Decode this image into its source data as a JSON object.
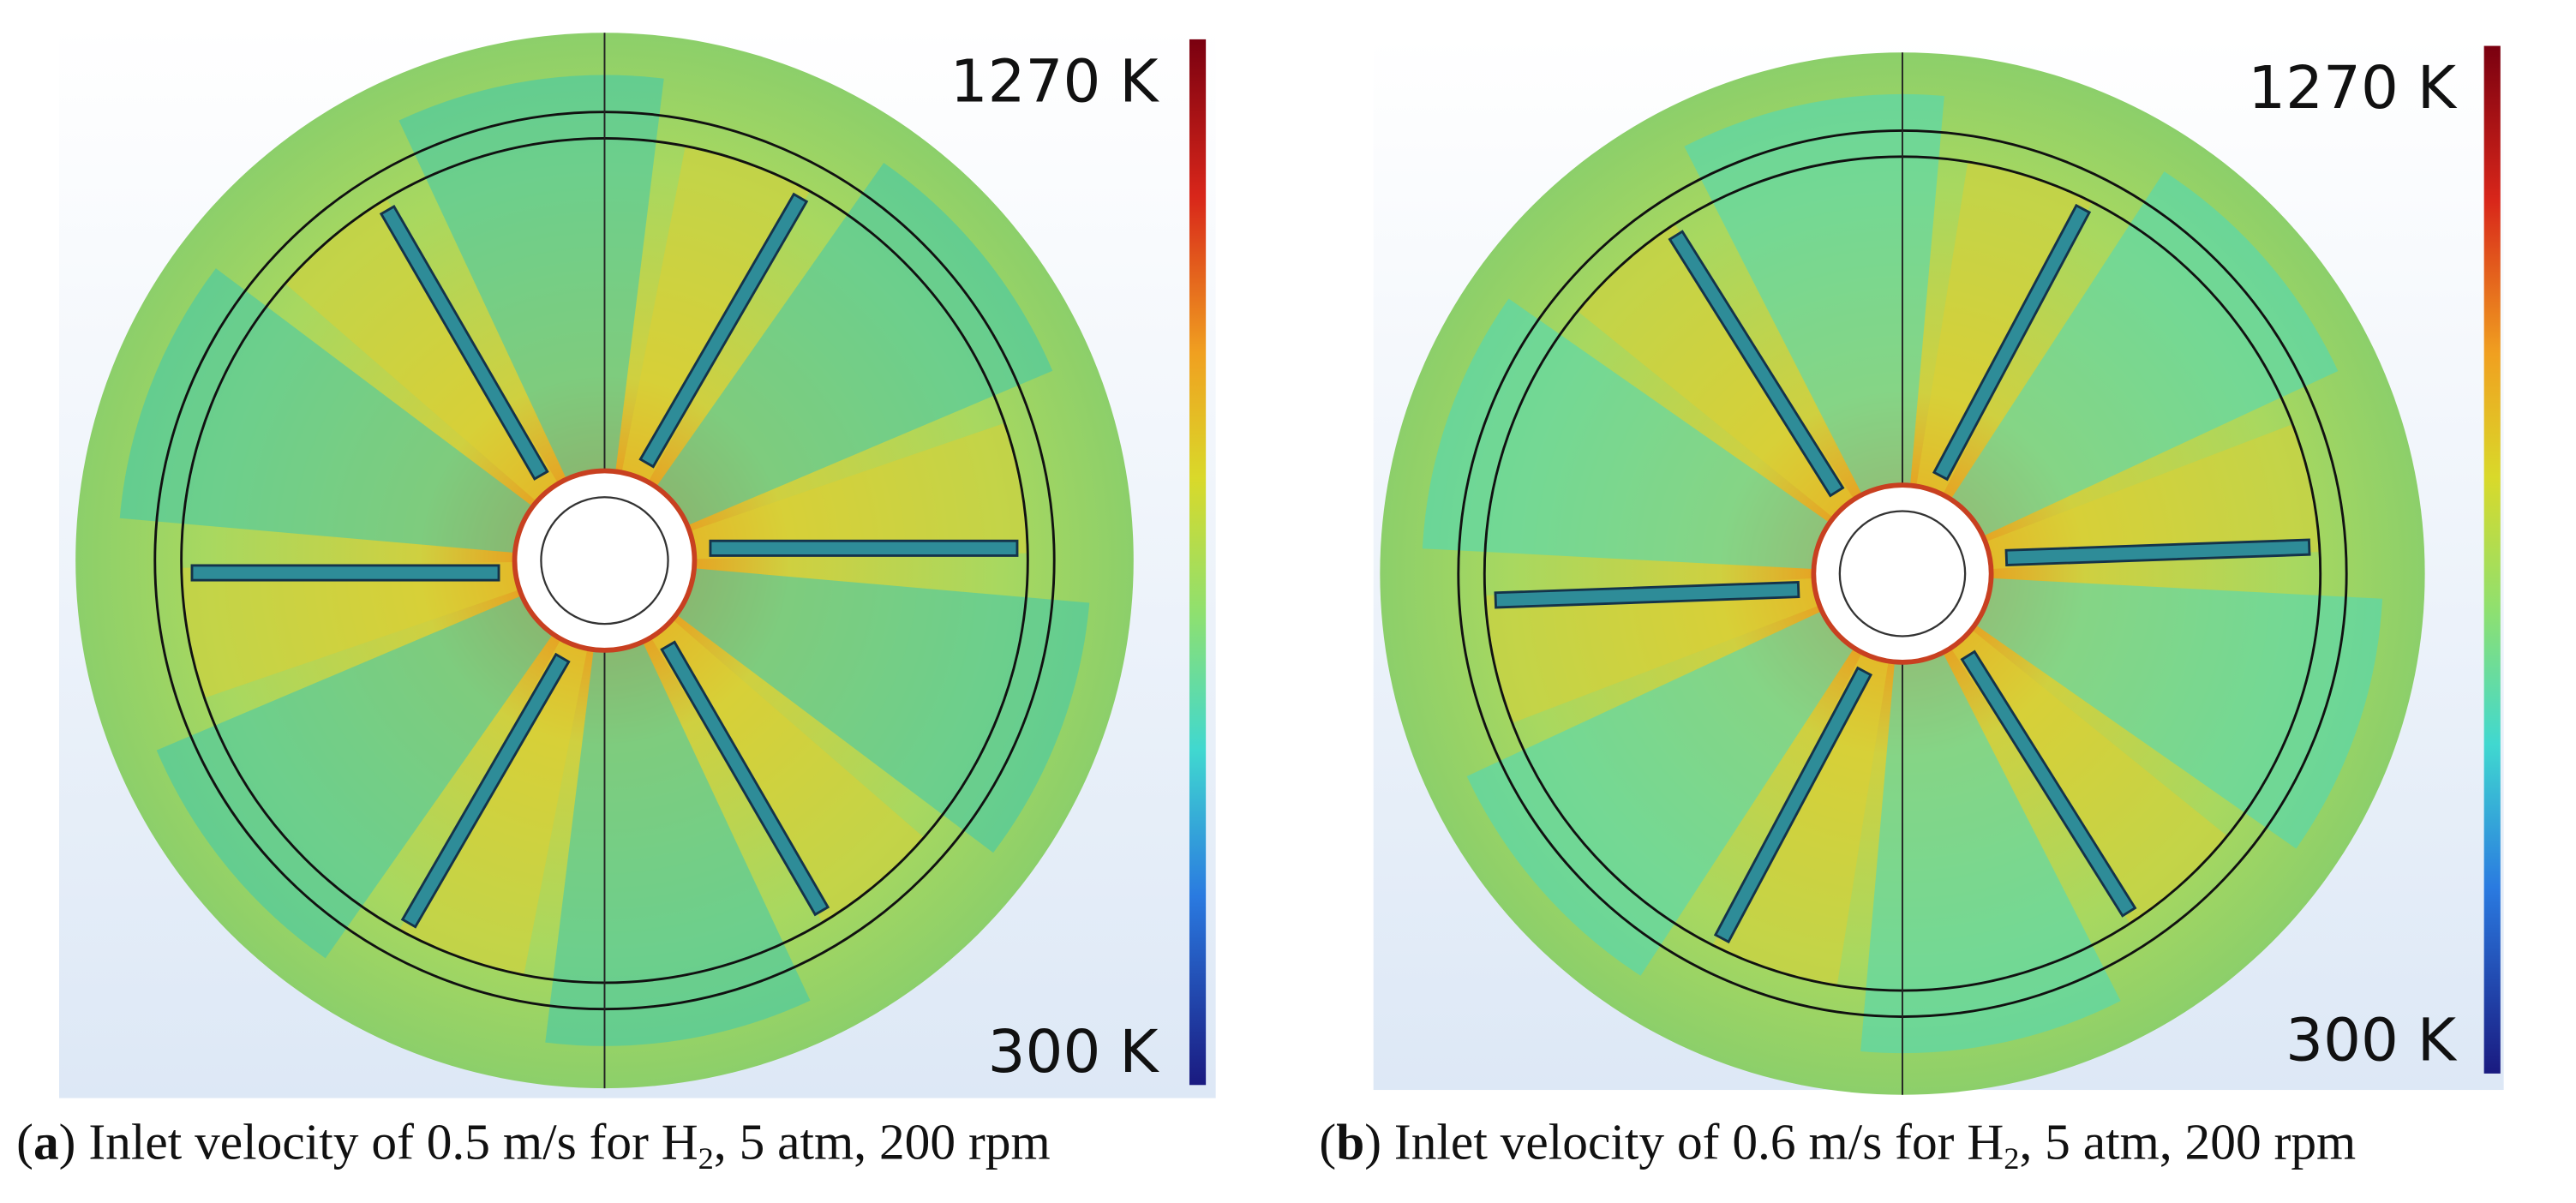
{
  "panels": [
    {
      "colorbar_max": "1270 K",
      "colorbar_min": "300 K",
      "caption": {
        "open": "(",
        "letter": "a",
        "text": ") Inlet velocity of 0.5 m/s for H",
        "sub": "2",
        "tail": ", 5 atm, 200 rpm"
      }
    },
    {
      "colorbar_max": "1270 K",
      "colorbar_min": "300 K",
      "caption": {
        "open": "(",
        "letter": "b",
        "text": ") Inlet velocity of 0.6 m/s for H",
        "sub": "2",
        "tail": ", 5 atm, 200 rpm"
      }
    }
  ]
}
